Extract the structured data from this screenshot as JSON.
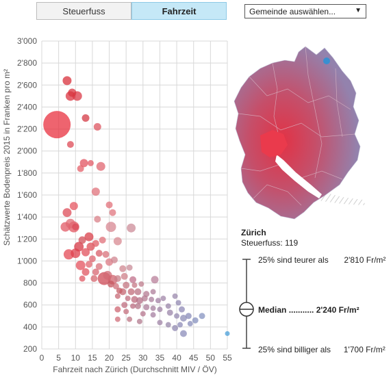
{
  "tabs": [
    {
      "label": "Steuerfuss",
      "active": false
    },
    {
      "label": "Fahrzeit",
      "active": true
    }
  ],
  "select": {
    "label": "Gemeinde auswählen...",
    "arrow": "▼"
  },
  "chart_data": {
    "type": "scatter",
    "title": "",
    "xlabel": "Fahrzeit nach Zürich (Durchschnitt MIV / ÖV)",
    "ylabel": "Schätzwerte Bodenpreis 2015 in Franken pro m²",
    "xlim": [
      0,
      55
    ],
    "ylim": [
      200,
      3000
    ],
    "xticks": [
      0,
      5,
      10,
      15,
      20,
      25,
      30,
      35,
      40,
      45,
      50,
      55
    ],
    "yticks": [
      200,
      400,
      600,
      800,
      1000,
      1200,
      1400,
      1600,
      1800,
      2000,
      2200,
      2400,
      2600,
      2800,
      3000
    ],
    "ytick_labels": [
      "200",
      "400",
      "600",
      "800",
      "1'000",
      "1'200",
      "1'400",
      "1'600",
      "1'800",
      "2'000",
      "2'200",
      "2'400",
      "2'600",
      "2'800",
      "3'000"
    ],
    "grid": true,
    "color_encoding": "Steuerfuss (red = low, purple = high, blue = selected)",
    "points": [
      {
        "x": 4.5,
        "y": 2240,
        "r": 20,
        "c": "#e8303f"
      },
      {
        "x": 7.5,
        "y": 2640,
        "r": 6.5,
        "c": "#d8303b"
      },
      {
        "x": 9,
        "y": 2530,
        "r": 6,
        "c": "#d83540"
      },
      {
        "x": 8.5,
        "y": 2500,
        "r": 7,
        "c": "#db3542"
      },
      {
        "x": 10.5,
        "y": 2500,
        "r": 7,
        "c": "#db3a47"
      },
      {
        "x": 13,
        "y": 2300,
        "r": 5.5,
        "c": "#d43a44"
      },
      {
        "x": 16.5,
        "y": 2220,
        "r": 5.5,
        "c": "#de5560"
      },
      {
        "x": 8.5,
        "y": 2060,
        "r": 5,
        "c": "#de4a55"
      },
      {
        "x": 12.5,
        "y": 1890,
        "r": 6,
        "c": "#e25360"
      },
      {
        "x": 14.5,
        "y": 1890,
        "r": 4.5,
        "c": "#e35a66"
      },
      {
        "x": 17.5,
        "y": 1860,
        "r": 6.5,
        "c": "#e06670"
      },
      {
        "x": 11.5,
        "y": 1840,
        "r": 5,
        "c": "#e4606a"
      },
      {
        "x": 16,
        "y": 1630,
        "r": 6,
        "c": "#e0727b"
      },
      {
        "x": 20,
        "y": 1510,
        "r": 5,
        "c": "#e2707a"
      },
      {
        "x": 9.5,
        "y": 1500,
        "r": 6,
        "c": "#e55560"
      },
      {
        "x": 7.5,
        "y": 1440,
        "r": 6.5,
        "c": "#dd4c58"
      },
      {
        "x": 21,
        "y": 1440,
        "r": 5,
        "c": "#e0767f"
      },
      {
        "x": 7,
        "y": 1310,
        "r": 7,
        "c": "#e25a66"
      },
      {
        "x": 9.5,
        "y": 1310,
        "r": 8,
        "c": "#e25560"
      },
      {
        "x": 8.5,
        "y": 1340,
        "r": 7,
        "c": "#e06872"
      },
      {
        "x": 10,
        "y": 1310,
        "r": 5,
        "c": "#d94b58"
      },
      {
        "x": 16.5,
        "y": 1380,
        "r": 5,
        "c": "#d98088"
      },
      {
        "x": 20.5,
        "y": 1310,
        "r": 7.5,
        "c": "#d78791"
      },
      {
        "x": 26.5,
        "y": 1300,
        "r": 6.5,
        "c": "#cc8c98"
      },
      {
        "x": 14,
        "y": 1220,
        "r": 6.5,
        "c": "#d93f4a"
      },
      {
        "x": 12,
        "y": 1190,
        "r": 5.5,
        "c": "#d34f58"
      },
      {
        "x": 18,
        "y": 1190,
        "r": 5,
        "c": "#e0707a"
      },
      {
        "x": 22.5,
        "y": 1180,
        "r": 6,
        "c": "#d88a92"
      },
      {
        "x": 11,
        "y": 1130,
        "r": 7,
        "c": "#d53744"
      },
      {
        "x": 14.5,
        "y": 1130,
        "r": 6,
        "c": "#dd4c56"
      },
      {
        "x": 16,
        "y": 1160,
        "r": 5,
        "c": "#e05c66"
      },
      {
        "x": 8,
        "y": 1060,
        "r": 7.5,
        "c": "#e44a55"
      },
      {
        "x": 10,
        "y": 1070,
        "r": 7,
        "c": "#de3f4c"
      },
      {
        "x": 13,
        "y": 1080,
        "r": 6,
        "c": "#e2505c"
      },
      {
        "x": 17,
        "y": 1070,
        "r": 5,
        "c": "#d85d68"
      },
      {
        "x": 19,
        "y": 1060,
        "r": 5,
        "c": "#d87079"
      },
      {
        "x": 15,
        "y": 1020,
        "r": 5,
        "c": "#df6570"
      },
      {
        "x": 20,
        "y": 990,
        "r": 5.5,
        "c": "#dc7a84"
      },
      {
        "x": 21.5,
        "y": 1010,
        "r": 5,
        "c": "#d08590"
      },
      {
        "x": 11.5,
        "y": 960,
        "r": 7,
        "c": "#e4525d"
      },
      {
        "x": 14,
        "y": 970,
        "r": 5,
        "c": "#e0656f"
      },
      {
        "x": 17,
        "y": 950,
        "r": 5,
        "c": "#d87079"
      },
      {
        "x": 13,
        "y": 900,
        "r": 5.5,
        "c": "#e05560"
      },
      {
        "x": 16,
        "y": 900,
        "r": 5,
        "c": "#d86570"
      },
      {
        "x": 19.5,
        "y": 870,
        "r": 6.5,
        "c": "#d16a74"
      },
      {
        "x": 24,
        "y": 930,
        "r": 5,
        "c": "#cf8790"
      },
      {
        "x": 26,
        "y": 940,
        "r": 4.5,
        "c": "#c88c98"
      },
      {
        "x": 12,
        "y": 840,
        "r": 4.5,
        "c": "#e05a64"
      },
      {
        "x": 15.5,
        "y": 840,
        "r": 5,
        "c": "#d5676f"
      },
      {
        "x": 18.5,
        "y": 840,
        "r": 9.5,
        "c": "#cd4955"
      },
      {
        "x": 21,
        "y": 830,
        "r": 7,
        "c": "#d0636d"
      },
      {
        "x": 22.5,
        "y": 840,
        "r": 5,
        "c": "#c97f88"
      },
      {
        "x": 24.5,
        "y": 860,
        "r": 5,
        "c": "#cf8089"
      },
      {
        "x": 27,
        "y": 830,
        "r": 5,
        "c": "#c0708b"
      },
      {
        "x": 33.5,
        "y": 830,
        "r": 5.5,
        "c": "#b87f99"
      },
      {
        "x": 20.5,
        "y": 790,
        "r": 5,
        "c": "#c6575f"
      },
      {
        "x": 22,
        "y": 770,
        "r": 4.5,
        "c": "#cf7079"
      },
      {
        "x": 25,
        "y": 780,
        "r": 5,
        "c": "#c47681"
      },
      {
        "x": 27.5,
        "y": 780,
        "r": 4,
        "c": "#c57886"
      },
      {
        "x": 29.5,
        "y": 790,
        "r": 4,
        "c": "#bf7c8c"
      },
      {
        "x": 23,
        "y": 730,
        "r": 4.5,
        "c": "#c55f68"
      },
      {
        "x": 24,
        "y": 720,
        "r": 5,
        "c": "#c66671"
      },
      {
        "x": 26.5,
        "y": 720,
        "r": 5,
        "c": "#c26c7a"
      },
      {
        "x": 28.5,
        "y": 720,
        "r": 5,
        "c": "#b97183"
      },
      {
        "x": 31,
        "y": 700,
        "r": 4.5,
        "c": "#b47b92"
      },
      {
        "x": 33,
        "y": 720,
        "r": 4,
        "c": "#ad7e99"
      },
      {
        "x": 22.5,
        "y": 680,
        "r": 4,
        "c": "#c76a75"
      },
      {
        "x": 25.5,
        "y": 660,
        "r": 4,
        "c": "#c26f80"
      },
      {
        "x": 27.5,
        "y": 650,
        "r": 5,
        "c": "#bd6a7c"
      },
      {
        "x": 29,
        "y": 640,
        "r": 5,
        "c": "#b46f86"
      },
      {
        "x": 30.5,
        "y": 660,
        "r": 4.5,
        "c": "#b47b90"
      },
      {
        "x": 32.5,
        "y": 650,
        "r": 4,
        "c": "#a97d9c"
      },
      {
        "x": 34.5,
        "y": 640,
        "r": 4,
        "c": "#a27fa3"
      },
      {
        "x": 36,
        "y": 660,
        "r": 4,
        "c": "#a085a8"
      },
      {
        "x": 39.5,
        "y": 680,
        "r": 4,
        "c": "#9a88ac"
      },
      {
        "x": 24.5,
        "y": 600,
        "r": 4.5,
        "c": "#c06f80"
      },
      {
        "x": 27,
        "y": 590,
        "r": 4,
        "c": "#bb6c80"
      },
      {
        "x": 28.5,
        "y": 590,
        "r": 4.5,
        "c": "#b47688"
      },
      {
        "x": 31,
        "y": 580,
        "r": 4.5,
        "c": "#ac7e9a"
      },
      {
        "x": 33,
        "y": 570,
        "r": 4,
        "c": "#a67f9e"
      },
      {
        "x": 35,
        "y": 560,
        "r": 4,
        "c": "#9e80a3"
      },
      {
        "x": 37.5,
        "y": 590,
        "r": 4,
        "c": "#9a86a8"
      },
      {
        "x": 40.5,
        "y": 620,
        "r": 4,
        "c": "#9288b2"
      },
      {
        "x": 41.5,
        "y": 560,
        "r": 4.5,
        "c": "#8f8ab5"
      },
      {
        "x": 22.5,
        "y": 560,
        "r": 4.5,
        "c": "#ce6672"
      },
      {
        "x": 25,
        "y": 540,
        "r": 4,
        "c": "#c46f7d"
      },
      {
        "x": 30,
        "y": 520,
        "r": 4,
        "c": "#b5758e"
      },
      {
        "x": 33,
        "y": 510,
        "r": 4,
        "c": "#a57fa0"
      },
      {
        "x": 38,
        "y": 530,
        "r": 4.5,
        "c": "#9b85aa"
      },
      {
        "x": 40,
        "y": 500,
        "r": 4,
        "c": "#968ab0"
      },
      {
        "x": 42,
        "y": 480,
        "r": 5,
        "c": "#8e8db7"
      },
      {
        "x": 43.5,
        "y": 500,
        "r": 4.5,
        "c": "#8a8cba"
      },
      {
        "x": 45.5,
        "y": 460,
        "r": 4.5,
        "c": "#8690be"
      },
      {
        "x": 47.5,
        "y": 500,
        "r": 4.5,
        "c": "#8693c0"
      },
      {
        "x": 22.5,
        "y": 470,
        "r": 4,
        "c": "#d06e79"
      },
      {
        "x": 26,
        "y": 470,
        "r": 4,
        "c": "#bd7584"
      },
      {
        "x": 29,
        "y": 450,
        "r": 4,
        "c": "#b27a8d"
      },
      {
        "x": 35,
        "y": 440,
        "r": 4,
        "c": "#9f83a6"
      },
      {
        "x": 37.5,
        "y": 420,
        "r": 4,
        "c": "#9787aa"
      },
      {
        "x": 41,
        "y": 420,
        "r": 4,
        "c": "#8d8bb7"
      },
      {
        "x": 44,
        "y": 430,
        "r": 4,
        "c": "#8a8dbb"
      },
      {
        "x": 39.5,
        "y": 390,
        "r": 4.5,
        "c": "#9289b2"
      },
      {
        "x": 42,
        "y": 340,
        "r": 5,
        "c": "#8b8cba"
      },
      {
        "x": 55,
        "y": 340,
        "r": 3.5,
        "c": "#4a9fd8"
      }
    ]
  },
  "map": {
    "alt": "Karte Kanton Zürich"
  },
  "selected": {
    "name": "Zürich",
    "tax_label": "Steuerfuss:",
    "tax_value": "119"
  },
  "stats": {
    "upper_label": "25% sind teurer als",
    "upper_value": "2'810 Fr/m²",
    "median_label": "Median",
    "median_dots": "...........",
    "median_value": "2'240 Fr/m²",
    "lower_label": "25% sind billiger als",
    "lower_value": "1'700 Fr/m²"
  }
}
